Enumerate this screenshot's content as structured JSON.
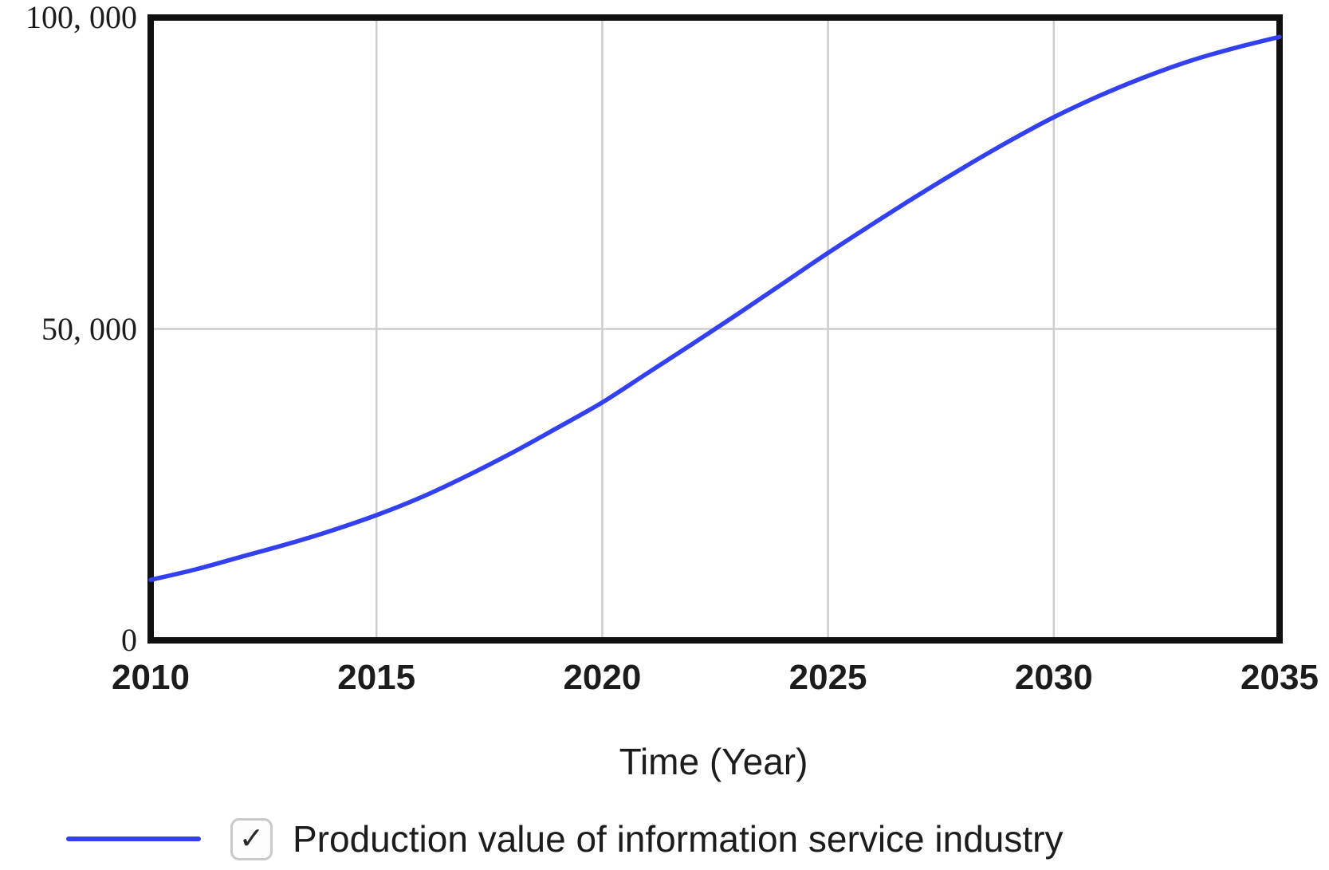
{
  "chart_data": {
    "type": "line",
    "title": "",
    "xlabel": "Time (Year)",
    "ylabel": "",
    "x_range": [
      2010,
      2035
    ],
    "y_range": [
      0,
      100000
    ],
    "x_ticks": {
      "values": [
        2010,
        2015,
        2020,
        2025,
        2030,
        2035
      ],
      "labels": [
        "2010",
        "2015",
        "2020",
        "2025",
        "2030",
        "2035"
      ]
    },
    "y_ticks": {
      "values": [
        0,
        50000,
        100000
      ],
      "labels": [
        "0",
        "50, 000",
        "100, 000"
      ]
    },
    "grid": {
      "vertical_at": [
        2015,
        2020,
        2025,
        2030
      ],
      "horizontal_at": [
        50000
      ]
    },
    "legend_position": "bottom-left",
    "series": [
      {
        "name": "Production value of information service industry",
        "color": "#3340f0",
        "x": [
          2010,
          2011,
          2012,
          2013,
          2014,
          2015,
          2016,
          2017,
          2018,
          2019,
          2020,
          2021,
          2022,
          2023,
          2024,
          2025,
          2026,
          2027,
          2028,
          2029,
          2030,
          2031,
          2032,
          2033,
          2034,
          2035
        ],
        "values": [
          9700,
          11400,
          13400,
          15400,
          17600,
          20100,
          23000,
          26400,
          30100,
          34100,
          38200,
          42900,
          47600,
          52400,
          57300,
          62200,
          66900,
          71500,
          75900,
          80100,
          84000,
          87400,
          90400,
          93000,
          95100,
          96900
        ]
      }
    ]
  },
  "legend": {
    "checkmark_glyph": "✓",
    "checkbox_checked": true
  },
  "colors": {
    "series_blue": "#3340f0",
    "frame": "#101010",
    "grid": "#cdcdcd",
    "text": "#1c1c1c",
    "checkbox_border": "#c9c9c9",
    "checkmark": "#2b2b2b",
    "background": "#ffffff"
  }
}
